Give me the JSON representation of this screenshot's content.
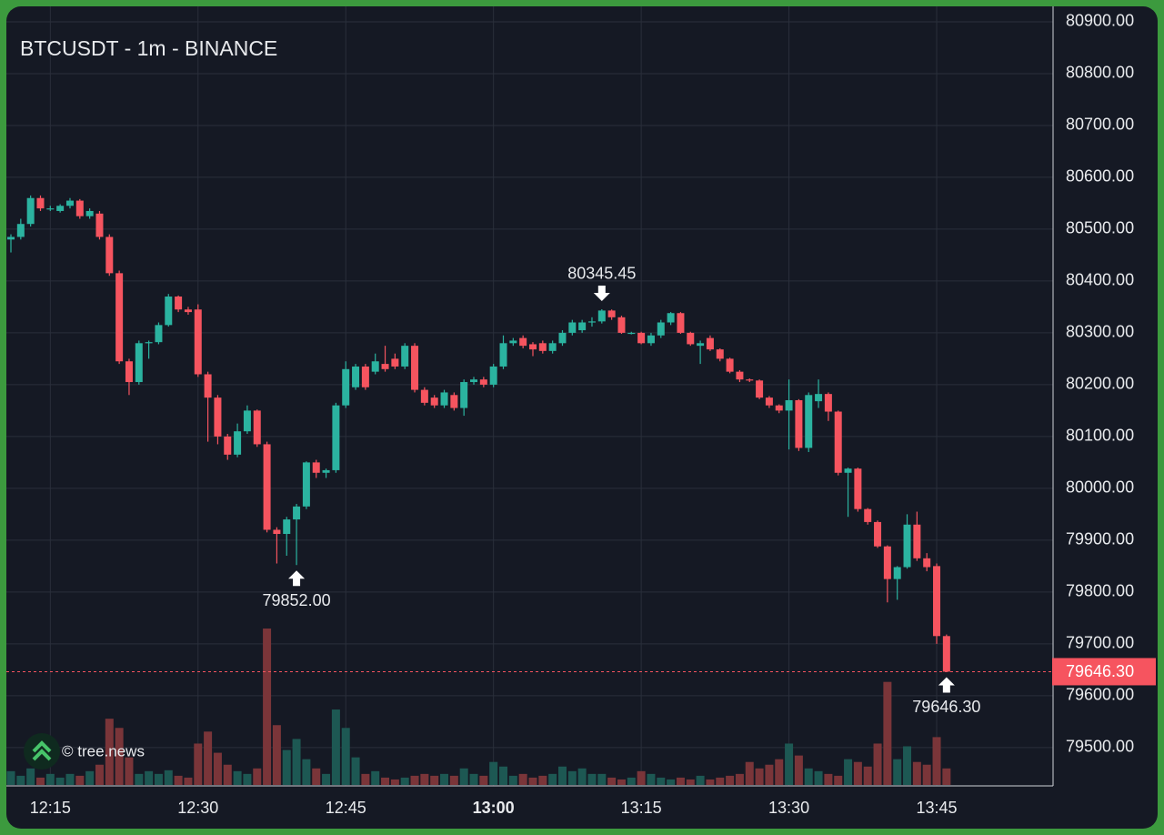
{
  "chart_data": {
    "type": "candlestick",
    "title": "BTCUSDT - 1m - BINANCE",
    "watermark": "© tree.news",
    "categories": [
      null,
      null,
      null,
      null,
      "12:15",
      null,
      null,
      null,
      null,
      null,
      null,
      null,
      null,
      null,
      null,
      null,
      null,
      null,
      null,
      "12:30",
      null,
      null,
      null,
      null,
      null,
      null,
      null,
      null,
      null,
      null,
      null,
      null,
      null,
      null,
      "12:45",
      null,
      null,
      null,
      null,
      null,
      null,
      null,
      null,
      null,
      null,
      null,
      null,
      null,
      null,
      "13:00",
      null,
      null,
      null,
      null,
      null,
      null,
      null,
      null,
      null,
      null,
      null,
      null,
      null,
      null,
      "13:15",
      null,
      null,
      null,
      null,
      null,
      null,
      null,
      null,
      null,
      null,
      null,
      null,
      null,
      null,
      "13:30",
      null,
      null,
      null,
      null,
      null,
      null,
      null,
      null,
      null,
      null,
      null,
      null,
      null,
      null,
      "13:45",
      null
    ],
    "open": [
      80480,
      80485,
      80510,
      80560,
      80540,
      80535,
      80545,
      80555,
      80525,
      80530,
      80485,
      80415,
      80245,
      80205,
      80280,
      80282,
      80315,
      80370,
      80345,
      80345,
      80220,
      80175,
      80100,
      80065,
      80110,
      80150,
      80085,
      79920,
      79912,
      79940,
      79965,
      80050,
      80030,
      80035,
      80160,
      80195,
      80235,
      80225,
      80240,
      80250,
      80235,
      80275,
      80190,
      80175,
      80160,
      80180,
      80155,
      80205,
      80210,
      80200,
      80235,
      80280,
      80290,
      80278,
      80280,
      80265,
      80280,
      80300,
      80305,
      80320,
      80322,
      80343,
      80330,
      80300,
      80300,
      80280,
      80295,
      80320,
      80338,
      80300,
      80275,
      80290,
      80268,
      80250,
      80225,
      80210,
      80208,
      80175,
      80160,
      80150,
      80170,
      80078,
      80168,
      80182,
      80148,
      80030,
      80038,
      79960,
      79935,
      79888,
      79825,
      79848,
      79930,
      79865,
      79850,
      79715
    ],
    "high": [
      80490,
      80520,
      80565,
      80565,
      80545,
      80548,
      80560,
      80558,
      80540,
      80535,
      80490,
      80420,
      80250,
      80285,
      80285,
      80320,
      80375,
      80372,
      80350,
      80355,
      80225,
      80180,
      80105,
      80125,
      80160,
      80152,
      80090,
      79925,
      79945,
      79970,
      80052,
      80055,
      80038,
      80165,
      80245,
      80240,
      80240,
      80260,
      80275,
      80260,
      80280,
      80280,
      80195,
      80180,
      80190,
      80185,
      80210,
      80215,
      80215,
      80240,
      80295,
      80290,
      80295,
      80282,
      80285,
      80285,
      80305,
      80325,
      80325,
      80330,
      80345.45,
      80345,
      80333,
      80302,
      80302,
      80300,
      80325,
      80340,
      80340,
      80302,
      80285,
      80295,
      80270,
      80252,
      80228,
      80212,
      80210,
      80178,
      80162,
      80210,
      80172,
      80185,
      80210,
      80185,
      80150,
      80040,
      80040,
      79962,
      79938,
      79890,
      79850,
      79950,
      79955,
      79875,
      79855,
      79718
    ],
    "low": [
      80455,
      80480,
      80505,
      80535,
      80535,
      80532,
      80540,
      80520,
      80520,
      80480,
      80410,
      80240,
      80180,
      80200,
      80250,
      80278,
      80312,
      80340,
      80335,
      80215,
      80090,
      80085,
      80055,
      80060,
      80105,
      80080,
      79915,
      79855,
      79870,
      79852,
      79960,
      80020,
      80020,
      80030,
      80155,
      80190,
      80190,
      80220,
      80225,
      80230,
      80230,
      80185,
      80160,
      80155,
      80155,
      80150,
      80140,
      80200,
      80195,
      80195,
      80230,
      80275,
      80270,
      80255,
      80260,
      80260,
      80275,
      80295,
      80300,
      80312,
      80318,
      80325,
      80298,
      80297,
      80278,
      80275,
      80290,
      80315,
      80298,
      80275,
      80240,
      80265,
      80245,
      80222,
      80205,
      80205,
      80172,
      80155,
      80145,
      80075,
      80072,
      80070,
      80155,
      80130,
      80025,
      79945,
      79955,
      79930,
      79885,
      79780,
      79785,
      79845,
      79860,
      79840,
      79700,
      79646.3
    ],
    "close": [
      80485,
      80510,
      80560,
      80540,
      80540,
      80545,
      80555,
      80525,
      80535,
      80485,
      80415,
      80245,
      80205,
      80280,
      80282,
      80315,
      80370,
      80345,
      80340,
      80220,
      80175,
      80100,
      80065,
      80110,
      80150,
      80085,
      79920,
      79912,
      79940,
      79965,
      80050,
      80030,
      80035,
      80160,
      80230,
      80235,
      80195,
      80245,
      80230,
      80235,
      80275,
      80190,
      80165,
      80160,
      80185,
      80155,
      80205,
      80210,
      80200,
      80235,
      80280,
      80285,
      80275,
      80268,
      80265,
      80280,
      80300,
      80320,
      80320,
      80322,
      80343,
      80330,
      80300,
      80300,
      80280,
      80295,
      80320,
      80338,
      80300,
      80278,
      80280,
      80268,
      80250,
      80225,
      80210,
      80208,
      80175,
      80160,
      80150,
      80170,
      80078,
      80180,
      80182,
      80148,
      80030,
      80038,
      79960,
      79935,
      79888,
      79825,
      79848,
      79930,
      79865,
      79848,
      79715,
      79646.3
    ],
    "volume": [
      15,
      10,
      18,
      8,
      12,
      8,
      12,
      10,
      15,
      22,
      72,
      62,
      30,
      12,
      15,
      12,
      16,
      10,
      8,
      45,
      58,
      35,
      22,
      15,
      12,
      18,
      170,
      65,
      38,
      50,
      28,
      18,
      12,
      82,
      62,
      30,
      12,
      15,
      8,
      6,
      8,
      10,
      12,
      10,
      12,
      10,
      18,
      12,
      10,
      25,
      20,
      10,
      12,
      8,
      10,
      12,
      20,
      15,
      18,
      12,
      12,
      8,
      6,
      8,
      15,
      12,
      8,
      6,
      8,
      6,
      10,
      6,
      8,
      10,
      12,
      25,
      18,
      22,
      28,
      45,
      32,
      18,
      15,
      12,
      10,
      28,
      25,
      20,
      45,
      112,
      28,
      42,
      25,
      22,
      52,
      18
    ],
    "up_color": "#2bb3a0",
    "down_color": "#f6545f",
    "up_volume_color": "#1d5853",
    "down_volume_color": "#7a3539",
    "ylim": [
      79426,
      80928
    ],
    "yticks": [
      {
        "value": 79500,
        "label": "79500.00"
      },
      {
        "value": 79600,
        "label": "79600.00"
      },
      {
        "value": 79700,
        "label": "79700.00"
      },
      {
        "value": 79800,
        "label": "79800.00"
      },
      {
        "value": 79900,
        "label": "79900.00"
      },
      {
        "value": 80000,
        "label": "80000.00"
      },
      {
        "value": 80100,
        "label": "80100.00"
      },
      {
        "value": 80200,
        "label": "80200.00"
      },
      {
        "value": 80300,
        "label": "80300.00"
      },
      {
        "value": 80400,
        "label": "80400.00"
      },
      {
        "value": 80500,
        "label": "80500.00"
      },
      {
        "value": 80600,
        "label": "80600.00"
      },
      {
        "value": 80700,
        "label": "80700.00"
      },
      {
        "value": 80800,
        "label": "80800.00"
      },
      {
        "value": 80900,
        "label": "80900.00"
      }
    ],
    "grid": true,
    "annotations": [
      {
        "value": 80345.45,
        "label": "80345.45"
      },
      {
        "value": 79852,
        "label": "79852.00"
      },
      {
        "value": 79646.3,
        "label": "79646.30"
      }
    ],
    "last_price": {
      "value": 79646.3,
      "label": "79646.30"
    }
  }
}
